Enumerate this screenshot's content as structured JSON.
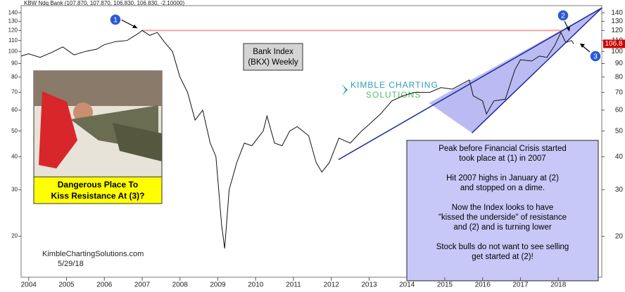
{
  "chart_data": {
    "type": "line",
    "header": "KBW Ndq Bank (107.870, 107.870, 106.830, 106.830, -2.10000)",
    "title_lines": [
      "Bank Index",
      "(BKX) Weekly"
    ],
    "x": [
      2003.8,
      2004.0,
      2004.3,
      2004.6,
      2004.9,
      2005.2,
      2005.5,
      2005.8,
      2006.0,
      2006.3,
      2006.6,
      2006.9,
      2007.0,
      2007.2,
      2007.4,
      2007.6,
      2007.8,
      2008.0,
      2008.2,
      2008.4,
      2008.6,
      2008.8,
      2008.95,
      2009.1,
      2009.18,
      2009.3,
      2009.5,
      2009.7,
      2009.9,
      2010.2,
      2010.3,
      2010.5,
      2010.7,
      2010.9,
      2011.1,
      2011.4,
      2011.6,
      2011.75,
      2011.95,
      2012.2,
      2012.5,
      2012.8,
      2013.0,
      2013.3,
      2013.6,
      2013.9,
      2014.2,
      2014.6,
      2014.9,
      2015.2,
      2015.5,
      2015.65,
      2015.75,
      2016.0,
      2016.1,
      2016.3,
      2016.6,
      2016.85,
      2017.0,
      2017.3,
      2017.5,
      2017.7,
      2017.9,
      2018.07,
      2018.2,
      2018.35,
      2018.41
    ],
    "series": [
      {
        "color": "#111111",
        "values": [
          96,
          98,
          95,
          99,
          104,
          97,
          100,
          102,
          106,
          109,
          110,
          117,
          120,
          115,
          118,
          108,
          100,
          80,
          70,
          55,
          60,
          45,
          40,
          22,
          18,
          30,
          38,
          45,
          44,
          50,
          57,
          45,
          44,
          50,
          52,
          48,
          38,
          35,
          38,
          47,
          45,
          50,
          53,
          58,
          65,
          68,
          70,
          70,
          73,
          72,
          76,
          78,
          68,
          65,
          58,
          65,
          66,
          85,
          93,
          92,
          96,
          95,
          105,
          118,
          108,
          110,
          106.83
        ]
      }
    ],
    "xlim": [
      2003.8,
      2019.15
    ],
    "xticks": [
      2004,
      2005,
      2006,
      2007,
      2008,
      2009,
      2010,
      2011,
      2012,
      2013,
      2014,
      2015,
      2016,
      2017,
      2018
    ],
    "ylim": [
      14,
      149
    ],
    "yticks": [
      20,
      30,
      40,
      50,
      60,
      70,
      80,
      90,
      100,
      110,
      120,
      130,
      140
    ],
    "log_scale_y": true,
    "last_value_label": "106.8",
    "last_value_color": "#cc0000",
    "resistance": {
      "x": [
        2007.0,
        2018.1
      ],
      "y": [
        120,
        120
      ],
      "color": "#f4a0a0"
    },
    "trendlines": [
      {
        "x": [
          2012.19,
          2019.15
        ],
        "y": [
          39,
          146
        ],
        "color": "#1a2a9a"
      },
      {
        "x": [
          2015.72,
          2019.15
        ],
        "y": [
          49.2,
          146
        ],
        "color": "#1a2a9a"
      }
    ],
    "shaded_area": {
      "x": [
        2014.58,
        2019.15,
        2015.72
      ],
      "y": [
        63.8,
        146,
        49.2
      ],
      "color": "#aaaaf0"
    },
    "markers": [
      "1",
      "2",
      "3"
    ],
    "photo_caption": [
      "Dangerous Place To",
      "Kiss Resistance At (3)?"
    ],
    "commentary": [
      [
        "Peak before Financial Crisis started",
        "took place at (1) in 2007"
      ],
      [
        "Hit 2007 highs in January at (2)",
        "and stopped on a dime."
      ],
      [
        "Now the Index looks to have",
        "\"kissed the underside\" of resistance",
        "and (2) and is turning lower"
      ],
      [
        "Stock bulls do not want to see selling",
        "get started at (2)!"
      ]
    ],
    "credit": "KimbleChartingSolutions.com",
    "date": "5/29/18",
    "logo": [
      "KIMBLE CHARTING",
      "SOLUTIONS"
    ]
  }
}
